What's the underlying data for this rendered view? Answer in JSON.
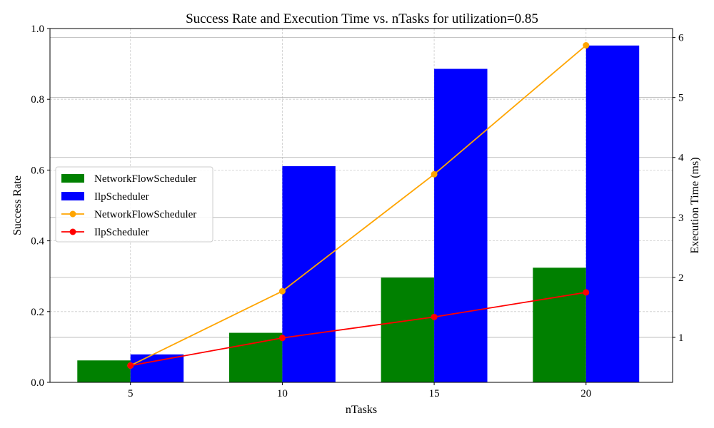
{
  "chart_data": {
    "type": "bar",
    "title": "Success Rate and Execution Time vs. nTasks for utilization=0.85",
    "xlabel": "nTasks",
    "ylabel": "Success Rate",
    "y2label": "Execution Time (ms)",
    "categories": [
      "5",
      "10",
      "15",
      "20"
    ],
    "ylim": [
      0,
      1.0
    ],
    "yticks": [
      "0.0",
      "0.2",
      "0.4",
      "0.6",
      "0.8",
      "1.0"
    ],
    "y2lim": [
      0.25,
      6.15
    ],
    "y2ticks": [
      "1",
      "2",
      "3",
      "4",
      "5",
      "6"
    ],
    "grid": true,
    "legend_position": "center-left",
    "bar_series": [
      {
        "name": "NetworkFlowScheduler",
        "color": "#008000",
        "values": [
          0.062,
          0.14,
          0.296,
          0.324
        ]
      },
      {
        "name": "IlpScheduler",
        "color": "#0000ff",
        "values": [
          0.079,
          0.611,
          0.886,
          0.952
        ]
      }
    ],
    "line_series": [
      {
        "name": "NetworkFlowScheduler",
        "color": "#ffa500",
        "values": [
          0.53,
          1.77,
          3.72,
          5.87
        ]
      },
      {
        "name": "IlpScheduler",
        "color": "#ff0000",
        "values": [
          0.53,
          0.99,
          1.34,
          1.75
        ]
      }
    ]
  }
}
